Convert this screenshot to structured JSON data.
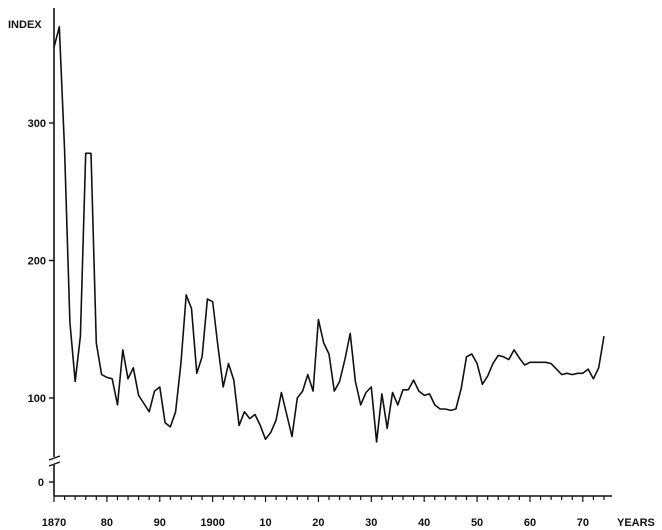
{
  "chart_data": {
    "type": "line",
    "ylabel": "INDEX",
    "xlabel": "YEARS",
    "xlim": [
      1870,
      1974
    ],
    "ylim": [
      50,
      370
    ],
    "y_axis_break": true,
    "y_zero_label": "0",
    "y_ticks": [
      {
        "value": 100,
        "label": "100"
      },
      {
        "value": 200,
        "label": "200"
      },
      {
        "value": 300,
        "label": "300"
      }
    ],
    "x_ticks": [
      {
        "value": 1870,
        "label": "1870"
      },
      {
        "value": 1880,
        "label": "80"
      },
      {
        "value": 1890,
        "label": "90"
      },
      {
        "value": 1900,
        "label": "1900"
      },
      {
        "value": 1910,
        "label": "10"
      },
      {
        "value": 1920,
        "label": "20"
      },
      {
        "value": 1930,
        "label": "30"
      },
      {
        "value": 1940,
        "label": "40"
      },
      {
        "value": 1950,
        "label": "50"
      },
      {
        "value": 1960,
        "label": "60"
      },
      {
        "value": 1970,
        "label": "70"
      }
    ],
    "x": [
      1870,
      1871,
      1872,
      1873,
      1874,
      1875,
      1876,
      1877,
      1878,
      1879,
      1880,
      1881,
      1882,
      1883,
      1884,
      1885,
      1886,
      1887,
      1888,
      1889,
      1890,
      1891,
      1892,
      1893,
      1894,
      1895,
      1896,
      1897,
      1898,
      1899,
      1900,
      1901,
      1902,
      1903,
      1904,
      1905,
      1906,
      1907,
      1908,
      1909,
      1910,
      1911,
      1912,
      1913,
      1914,
      1915,
      1916,
      1917,
      1918,
      1919,
      1920,
      1921,
      1922,
      1923,
      1924,
      1925,
      1926,
      1927,
      1928,
      1929,
      1930,
      1931,
      1932,
      1933,
      1934,
      1935,
      1936,
      1937,
      1938,
      1939,
      1940,
      1941,
      1942,
      1943,
      1944,
      1945,
      1946,
      1947,
      1948,
      1949,
      1950,
      1951,
      1952,
      1953,
      1954,
      1955,
      1956,
      1957,
      1958,
      1959,
      1960,
      1961,
      1962,
      1963,
      1964,
      1965,
      1966,
      1967,
      1968,
      1969,
      1970,
      1971,
      1972,
      1973,
      1974
    ],
    "series": [
      {
        "values": [
          355,
          370,
          280,
          155,
          112,
          145,
          278,
          278,
          140,
          117,
          115,
          114,
          95,
          135,
          114,
          122,
          102,
          96,
          90,
          105,
          108,
          82,
          79,
          90,
          125,
          175,
          165,
          118,
          130,
          172,
          170,
          138,
          108,
          125,
          113,
          80,
          90,
          85,
          88,
          80,
          70,
          75,
          84,
          104,
          88,
          72,
          100,
          105,
          117,
          105,
          157,
          140,
          132,
          105,
          112,
          128,
          147,
          112,
          95,
          104,
          108,
          68,
          103,
          78,
          104,
          95,
          106,
          106,
          113,
          105,
          102,
          103,
          95,
          92,
          92,
          91,
          92,
          107,
          130,
          132,
          125,
          110,
          116,
          125,
          131,
          130,
          128,
          135,
          129,
          124,
          126,
          126,
          126,
          126,
          125,
          121,
          117,
          118,
          117,
          118,
          118,
          121,
          114,
          122,
          145
        ]
      }
    ]
  }
}
